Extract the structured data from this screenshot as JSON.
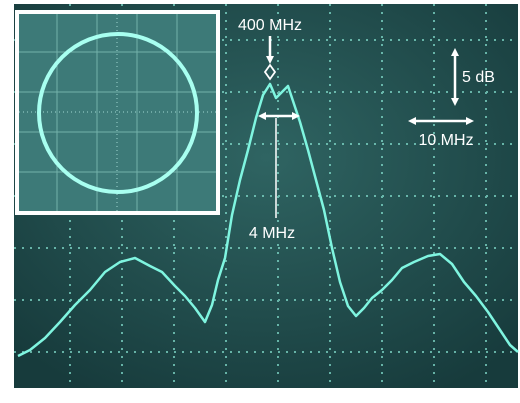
{
  "annotations": {
    "peak": "400 MHz",
    "vertical_scale": "5 dB",
    "horizontal_scale": "10 MHz",
    "bandwidth": "4 MHz"
  }
}
